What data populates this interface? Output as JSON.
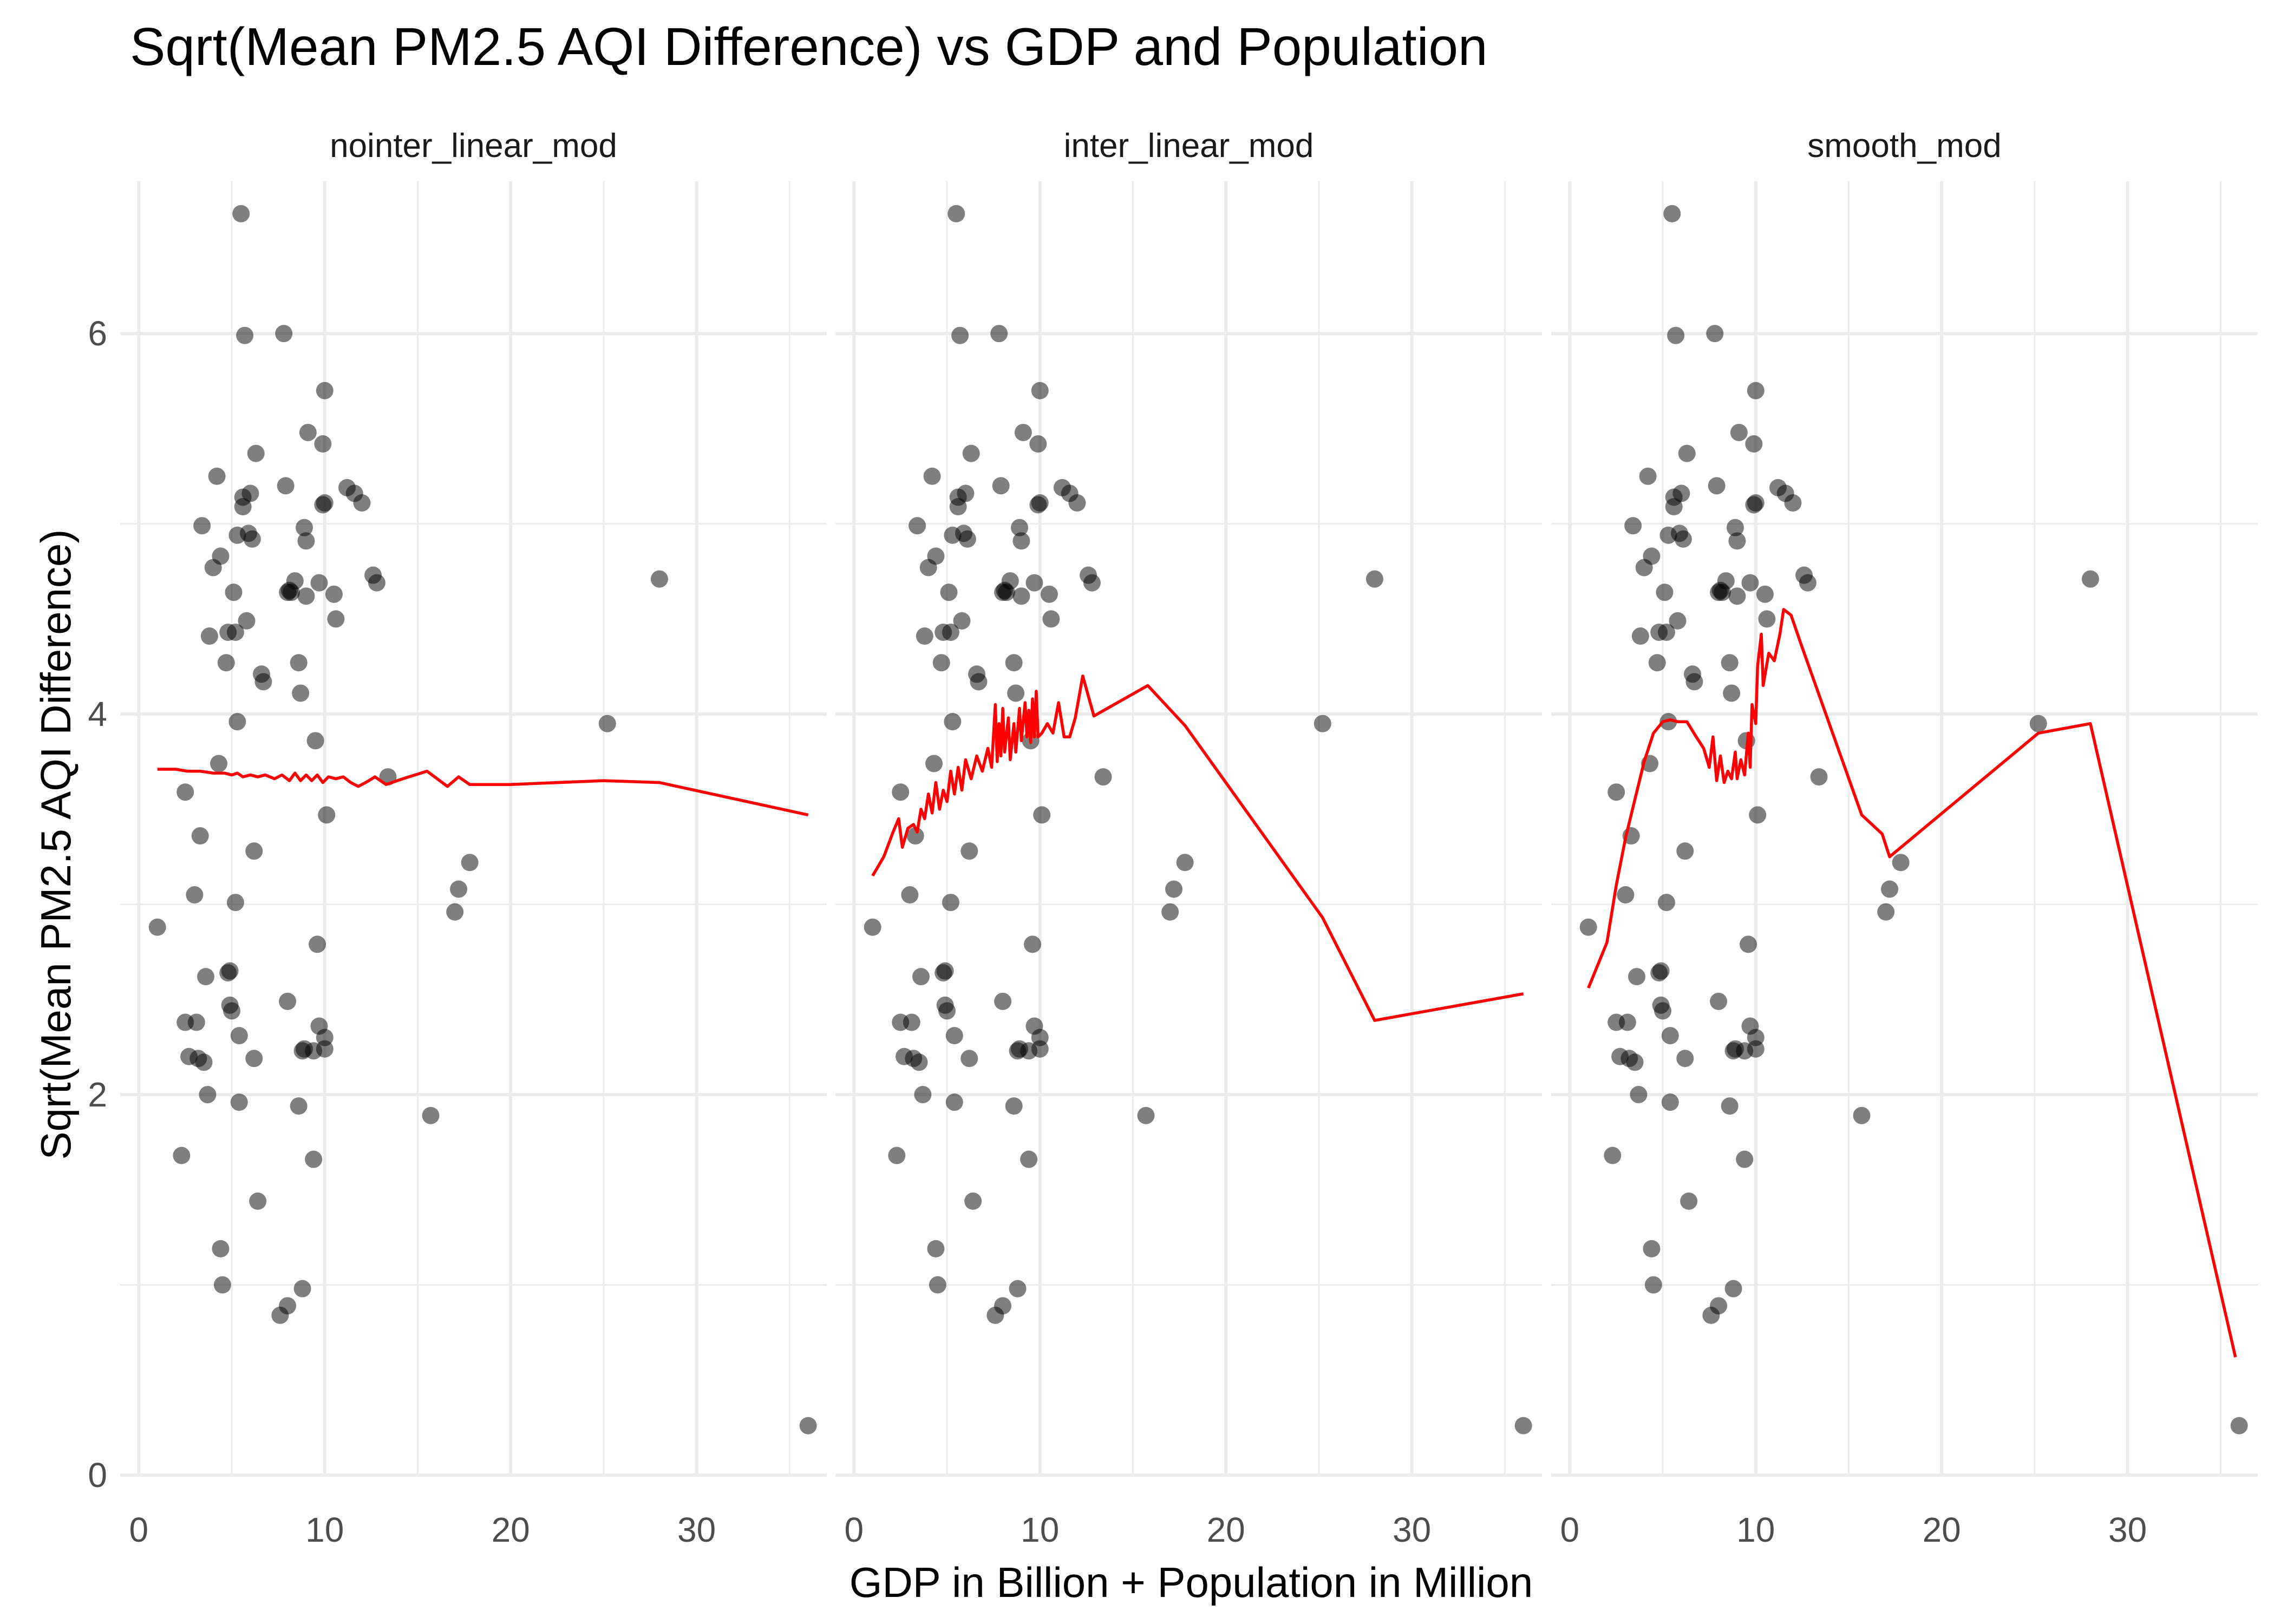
{
  "chart_data": {
    "type": "scatter",
    "title": "Sqrt(Mean PM2.5 AQI Difference) vs GDP and Population",
    "xlabel": "GDP in Billion + Population in Million",
    "ylabel": "Sqrt(Mean PM2.5 AQI Difference)",
    "xlim": [
      -1,
      37
    ],
    "ylim": [
      0,
      6.8
    ],
    "x_ticks": [
      0,
      10,
      20,
      30
    ],
    "y_ticks": [
      0,
      2,
      4,
      6
    ],
    "grid": true,
    "legend": "none",
    "colors": {
      "points": "#000000",
      "line": "#ff0000",
      "grid": "#ebebeb",
      "text": "#000000",
      "tick_text": "#4d4d4d"
    },
    "points": [
      [
        1.0,
        2.88
      ],
      [
        2.3,
        1.68
      ],
      [
        2.5,
        3.59
      ],
      [
        2.5,
        2.38
      ],
      [
        2.7,
        2.2
      ],
      [
        3.0,
        3.05
      ],
      [
        3.1,
        2.38
      ],
      [
        3.3,
        3.36
      ],
      [
        3.2,
        2.19
      ],
      [
        3.4,
        4.99
      ],
      [
        3.5,
        2.17
      ],
      [
        3.6,
        2.62
      ],
      [
        3.7,
        2.0
      ],
      [
        3.8,
        4.41
      ],
      [
        4.0,
        4.77
      ],
      [
        4.2,
        5.25
      ],
      [
        4.3,
        3.74
      ],
      [
        4.4,
        4.83
      ],
      [
        4.4,
        1.19
      ],
      [
        4.5,
        1.0
      ],
      [
        4.7,
        4.27
      ],
      [
        4.8,
        4.43
      ],
      [
        4.8,
        2.64
      ],
      [
        4.9,
        2.47
      ],
      [
        4.9,
        2.65
      ],
      [
        5.0,
        2.44
      ],
      [
        5.1,
        4.64
      ],
      [
        5.2,
        4.43
      ],
      [
        5.2,
        3.01
      ],
      [
        5.3,
        3.96
      ],
      [
        5.3,
        4.94
      ],
      [
        5.4,
        2.31
      ],
      [
        5.4,
        1.96
      ],
      [
        5.5,
        6.63
      ],
      [
        5.6,
        5.14
      ],
      [
        5.6,
        5.09
      ],
      [
        5.7,
        5.99
      ],
      [
        5.8,
        4.49
      ],
      [
        5.9,
        4.95
      ],
      [
        6.0,
        5.16
      ],
      [
        6.1,
        4.92
      ],
      [
        6.2,
        2.19
      ],
      [
        6.2,
        3.28
      ],
      [
        6.3,
        5.37
      ],
      [
        6.4,
        1.44
      ],
      [
        6.6,
        4.21
      ],
      [
        6.7,
        4.17
      ],
      [
        7.6,
        0.84
      ],
      [
        7.8,
        6.0
      ],
      [
        7.9,
        5.2
      ],
      [
        8.0,
        0.89
      ],
      [
        8.0,
        4.64
      ],
      [
        8.0,
        2.49
      ],
      [
        8.1,
        4.65
      ],
      [
        8.2,
        4.64
      ],
      [
        8.4,
        4.7
      ],
      [
        8.6,
        1.94
      ],
      [
        8.6,
        4.27
      ],
      [
        8.7,
        4.11
      ],
      [
        8.8,
        0.98
      ],
      [
        8.8,
        2.23
      ],
      [
        8.9,
        4.98
      ],
      [
        8.9,
        2.24
      ],
      [
        9.0,
        4.91
      ],
      [
        9.0,
        4.62
      ],
      [
        9.1,
        5.48
      ],
      [
        9.4,
        1.66
      ],
      [
        9.4,
        2.23
      ],
      [
        9.5,
        3.86
      ],
      [
        9.6,
        2.79
      ],
      [
        9.7,
        4.69
      ],
      [
        9.7,
        2.36
      ],
      [
        9.9,
        5.1
      ],
      [
        9.9,
        5.42
      ],
      [
        10.0,
        5.7
      ],
      [
        10.0,
        5.11
      ],
      [
        10.0,
        2.24
      ],
      [
        10.1,
        3.47
      ],
      [
        10.0,
        2.3
      ],
      [
        10.5,
        4.63
      ],
      [
        10.6,
        4.5
      ],
      [
        11.2,
        5.19
      ],
      [
        11.6,
        5.16
      ],
      [
        12.0,
        5.11
      ],
      [
        12.6,
        4.73
      ],
      [
        12.8,
        4.69
      ],
      [
        13.4,
        3.67
      ],
      [
        15.7,
        1.89
      ],
      [
        17.0,
        2.96
      ],
      [
        17.2,
        3.08
      ],
      [
        17.8,
        3.22
      ],
      [
        25.2,
        3.95
      ],
      [
        28.0,
        4.71
      ],
      [
        36.0,
        0.26
      ]
    ],
    "panels": [
      {
        "name": "nointer_linear_mod",
        "line": [
          [
            1.0,
            3.71
          ],
          [
            2.0,
            3.71
          ],
          [
            2.6,
            3.7
          ],
          [
            3.3,
            3.7
          ],
          [
            4.0,
            3.69
          ],
          [
            4.6,
            3.69
          ],
          [
            5.0,
            3.68
          ],
          [
            5.3,
            3.69
          ],
          [
            5.6,
            3.67
          ],
          [
            6.0,
            3.68
          ],
          [
            6.4,
            3.67
          ],
          [
            6.8,
            3.68
          ],
          [
            7.3,
            3.66
          ],
          [
            7.7,
            3.68
          ],
          [
            8.1,
            3.65
          ],
          [
            8.4,
            3.69
          ],
          [
            8.7,
            3.65
          ],
          [
            9.0,
            3.68
          ],
          [
            9.3,
            3.65
          ],
          [
            9.6,
            3.68
          ],
          [
            9.9,
            3.64
          ],
          [
            10.2,
            3.67
          ],
          [
            10.6,
            3.66
          ],
          [
            11.0,
            3.67
          ],
          [
            11.4,
            3.64
          ],
          [
            11.8,
            3.62
          ],
          [
            12.2,
            3.64
          ],
          [
            12.7,
            3.67
          ],
          [
            13.3,
            3.63
          ],
          [
            14.2,
            3.66
          ],
          [
            15.5,
            3.7
          ],
          [
            16.6,
            3.62
          ],
          [
            17.2,
            3.67
          ],
          [
            17.8,
            3.63
          ],
          [
            20.0,
            3.63
          ],
          [
            25.0,
            3.65
          ],
          [
            28.0,
            3.64
          ],
          [
            36.0,
            3.47
          ]
        ]
      },
      {
        "name": "inter_linear_mod",
        "line": [
          [
            1.0,
            3.15
          ],
          [
            1.6,
            3.25
          ],
          [
            2.1,
            3.38
          ],
          [
            2.4,
            3.45
          ],
          [
            2.6,
            3.3
          ],
          [
            2.9,
            3.4
          ],
          [
            3.2,
            3.42
          ],
          [
            3.4,
            3.38
          ],
          [
            3.6,
            3.5
          ],
          [
            3.8,
            3.45
          ],
          [
            4.0,
            3.58
          ],
          [
            4.2,
            3.48
          ],
          [
            4.4,
            3.64
          ],
          [
            4.6,
            3.5
          ],
          [
            4.8,
            3.6
          ],
          [
            5.0,
            3.54
          ],
          [
            5.2,
            3.7
          ],
          [
            5.4,
            3.58
          ],
          [
            5.6,
            3.72
          ],
          [
            5.8,
            3.6
          ],
          [
            6.0,
            3.76
          ],
          [
            6.3,
            3.66
          ],
          [
            6.6,
            3.78
          ],
          [
            6.9,
            3.7
          ],
          [
            7.2,
            3.82
          ],
          [
            7.4,
            3.72
          ],
          [
            7.6,
            4.05
          ],
          [
            7.7,
            3.75
          ],
          [
            7.8,
            3.95
          ],
          [
            7.9,
            3.78
          ],
          [
            8.0,
            4.03
          ],
          [
            8.1,
            3.8
          ],
          [
            8.3,
            3.98
          ],
          [
            8.4,
            3.76
          ],
          [
            8.6,
            3.95
          ],
          [
            8.7,
            3.8
          ],
          [
            8.9,
            4.03
          ],
          [
            9.0,
            3.86
          ],
          [
            9.2,
            4.06
          ],
          [
            9.3,
            3.88
          ],
          [
            9.4,
            4.02
          ],
          [
            9.5,
            3.85
          ],
          [
            9.6,
            4.08
          ],
          [
            9.7,
            3.88
          ],
          [
            9.8,
            4.12
          ],
          [
            9.9,
            3.88
          ],
          [
            10.1,
            3.9
          ],
          [
            10.4,
            3.95
          ],
          [
            10.7,
            3.9
          ],
          [
            11.0,
            4.06
          ],
          [
            11.3,
            3.88
          ],
          [
            11.6,
            3.88
          ],
          [
            11.9,
            3.98
          ],
          [
            12.3,
            4.2
          ],
          [
            12.9,
            3.99
          ],
          [
            15.8,
            4.15
          ],
          [
            17.8,
            3.94
          ],
          [
            25.2,
            2.93
          ],
          [
            28.0,
            2.39
          ],
          [
            36.0,
            2.53
          ]
        ]
      },
      {
        "name": "smooth_mod",
        "line": [
          [
            1.0,
            2.56
          ],
          [
            2.0,
            2.8
          ],
          [
            2.5,
            3.1
          ],
          [
            3.0,
            3.35
          ],
          [
            3.5,
            3.55
          ],
          [
            4.0,
            3.75
          ],
          [
            4.5,
            3.9
          ],
          [
            5.0,
            3.96
          ],
          [
            5.4,
            3.97
          ],
          [
            5.8,
            3.96
          ],
          [
            6.3,
            3.96
          ],
          [
            6.8,
            3.88
          ],
          [
            7.2,
            3.82
          ],
          [
            7.5,
            3.72
          ],
          [
            7.7,
            3.88
          ],
          [
            7.9,
            3.65
          ],
          [
            8.1,
            3.78
          ],
          [
            8.3,
            3.64
          ],
          [
            8.5,
            3.7
          ],
          [
            8.7,
            3.66
          ],
          [
            8.9,
            3.8
          ],
          [
            9.0,
            3.66
          ],
          [
            9.2,
            3.76
          ],
          [
            9.4,
            3.68
          ],
          [
            9.6,
            3.9
          ],
          [
            9.7,
            3.72
          ],
          [
            9.8,
            4.05
          ],
          [
            10.0,
            3.95
          ],
          [
            10.1,
            4.25
          ],
          [
            10.3,
            4.42
          ],
          [
            10.4,
            4.15
          ],
          [
            10.7,
            4.32
          ],
          [
            11.0,
            4.28
          ],
          [
            11.3,
            4.42
          ],
          [
            11.5,
            4.55
          ],
          [
            11.9,
            4.52
          ],
          [
            12.5,
            4.35
          ],
          [
            15.7,
            3.47
          ],
          [
            16.8,
            3.37
          ],
          [
            17.2,
            3.25
          ],
          [
            25.2,
            3.9
          ],
          [
            28.0,
            3.95
          ],
          [
            35.8,
            0.62
          ]
        ]
      }
    ]
  }
}
